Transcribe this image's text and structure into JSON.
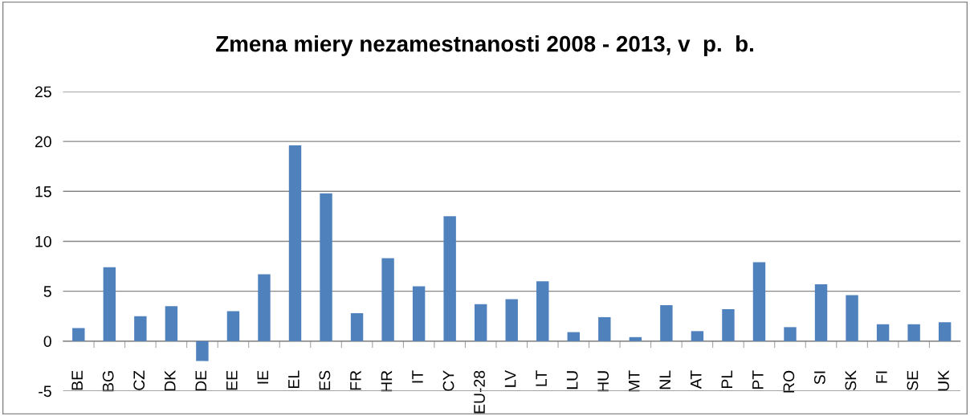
{
  "chart_data": {
    "type": "bar",
    "title": "Zmena miery nezamestnanosti 2008 - 2013, v  p.  b.",
    "categories": [
      "BE",
      "BG",
      "CZ",
      "DK",
      "DE",
      "EE",
      "IE",
      "EL",
      "ES",
      "FR",
      "HR",
      "IT",
      "CY",
      "EU-28",
      "LV",
      "LT",
      "LU",
      "HU",
      "MT",
      "NL",
      "AT",
      "PL",
      "PT",
      "RO",
      "SI",
      "SK",
      "FI",
      "SE",
      "UK"
    ],
    "values": [
      1.3,
      7.4,
      2.5,
      3.5,
      -2.0,
      3.0,
      6.7,
      19.6,
      14.8,
      2.8,
      8.3,
      5.5,
      12.5,
      3.7,
      4.2,
      6.0,
      0.9,
      2.4,
      0.4,
      3.6,
      1.0,
      3.2,
      7.9,
      1.4,
      5.7,
      4.6,
      1.7,
      1.7,
      1.9
    ],
    "color": "#4f81bd",
    "ylim": [
      -5,
      25
    ],
    "yticks": [
      -5,
      0,
      5,
      10,
      15,
      20,
      25
    ],
    "grid": "y",
    "legend": false
  }
}
